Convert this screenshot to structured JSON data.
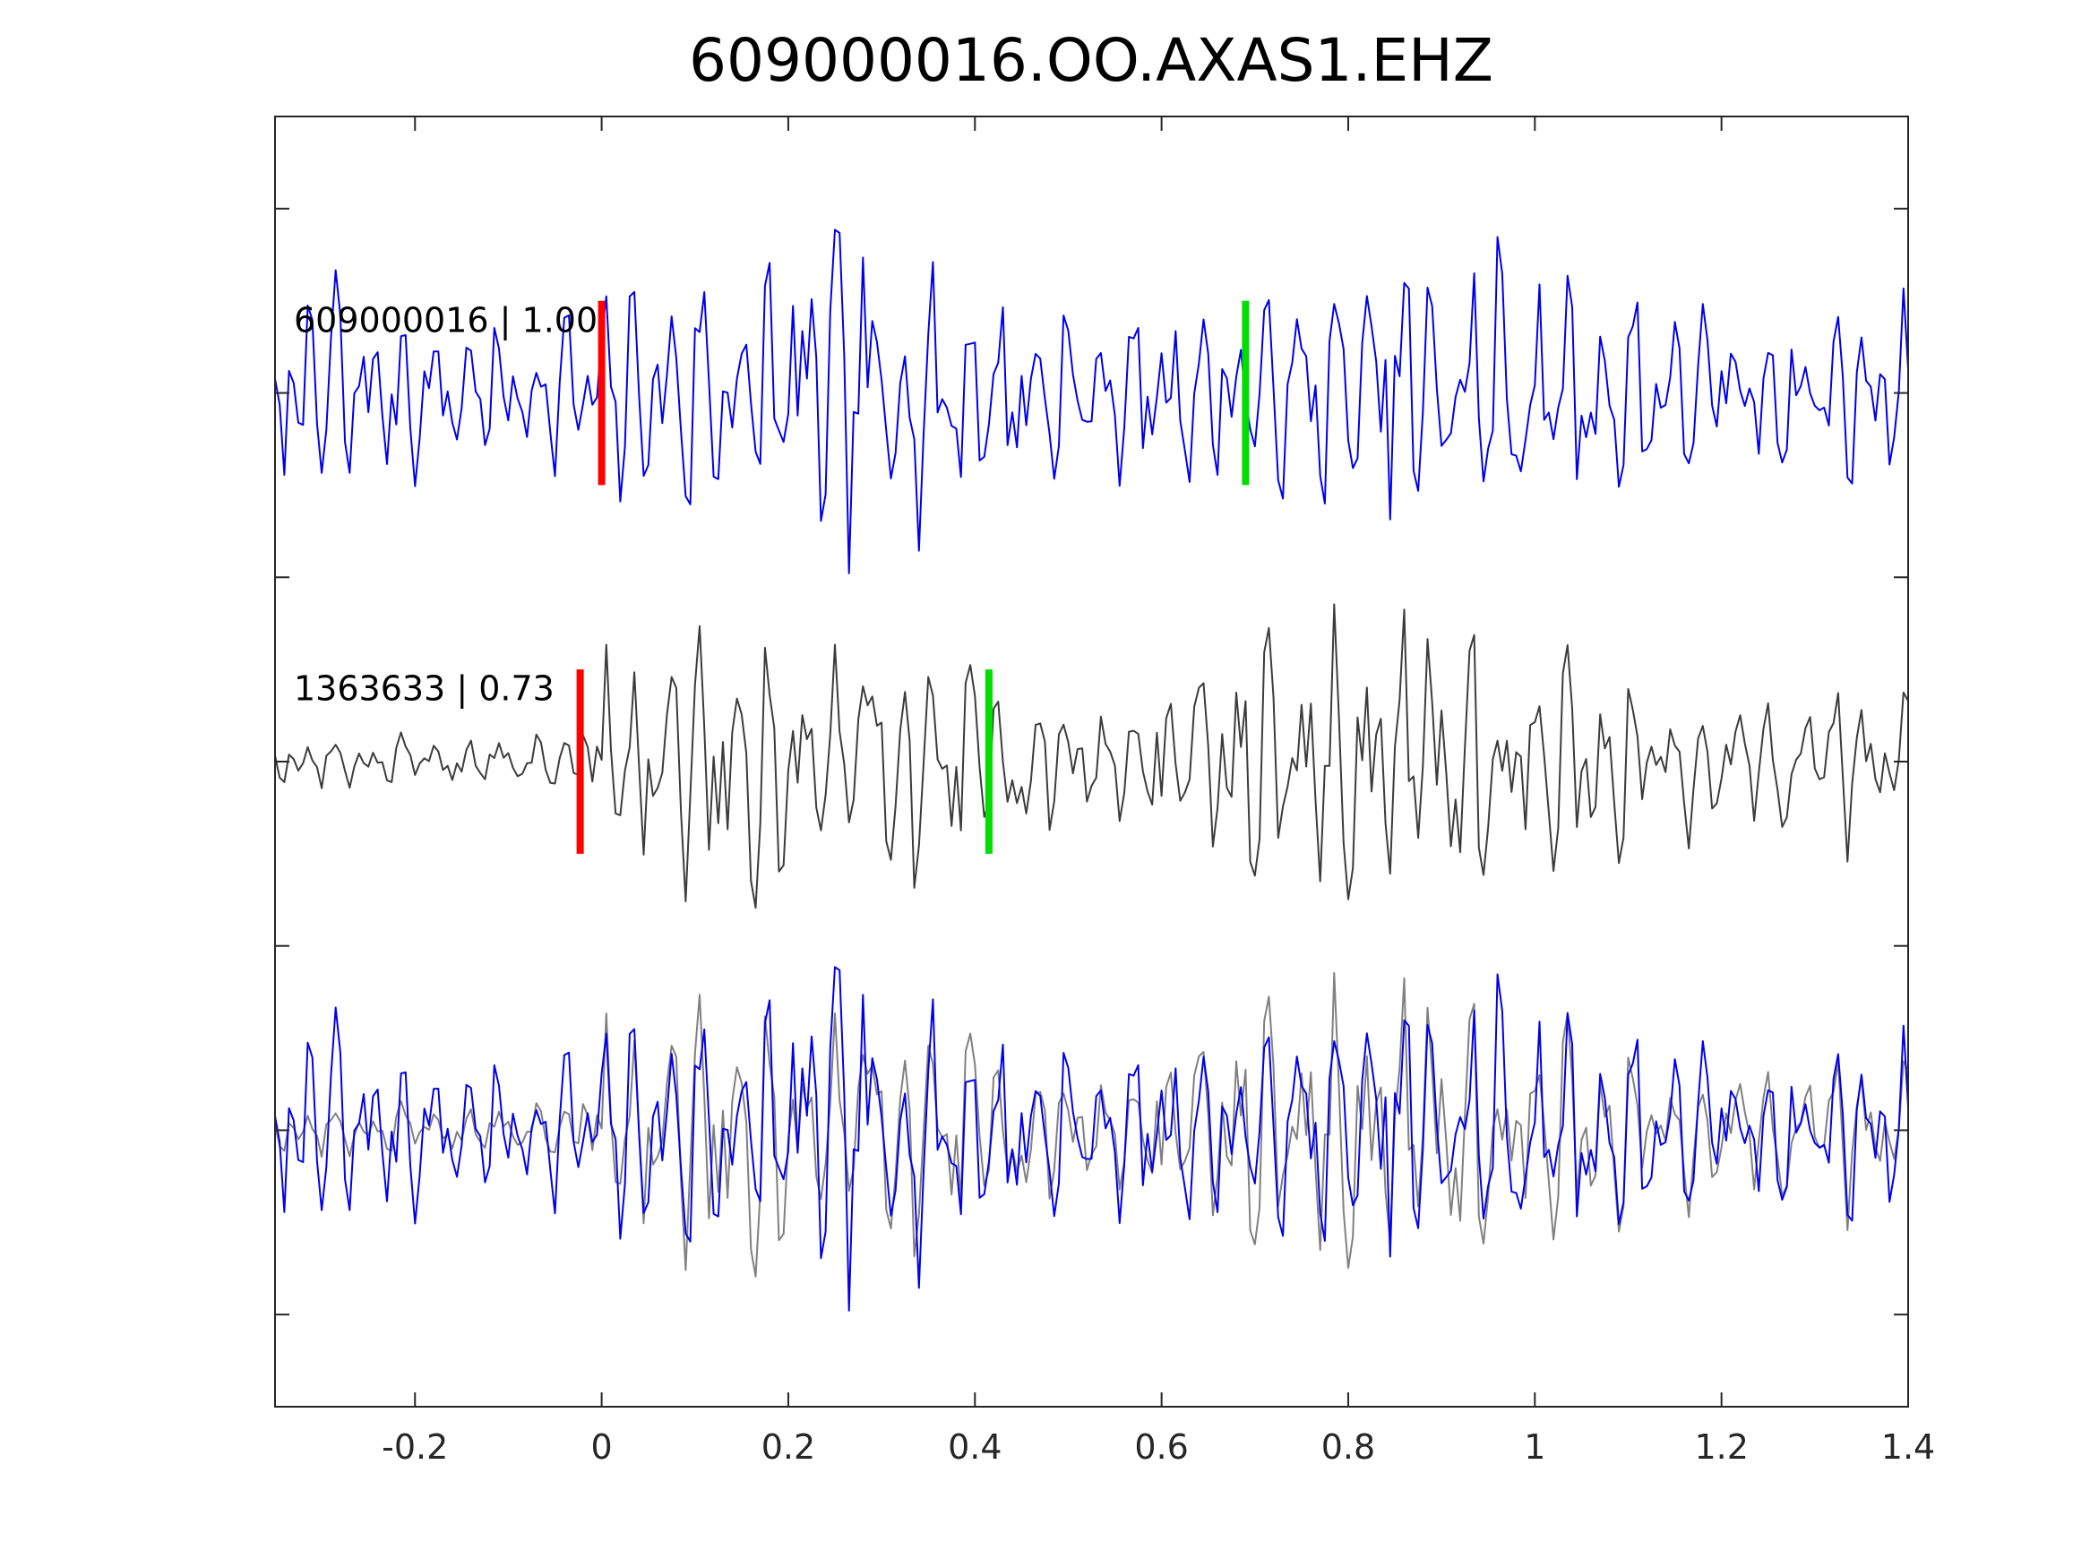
{
  "chart_data": {
    "type": "line",
    "title": "609000016.OO.AXAS1.EHZ",
    "xlabel": "",
    "ylabel": "",
    "xlim": [
      -0.35,
      1.4
    ],
    "x_ticks": [
      -0.2,
      0,
      0.2,
      0.4,
      0.6,
      0.8,
      1,
      1.2,
      1.4
    ],
    "x_tick_labels": [
      "-0.2",
      "0",
      "0.2",
      "0.4",
      "0.6",
      "0.8",
      "1",
      "1.2",
      "1.4"
    ],
    "ylim": [
      0.25,
      3.75
    ],
    "y_ticks": [
      0.5,
      1,
      1.5,
      2,
      2.5,
      3,
      3.5
    ],
    "y_tick_labels": [
      "",
      "",
      "",
      "",
      "",
      "",
      ""
    ],
    "grid": false,
    "colors": {
      "template": "#0000ee",
      "detection": "#3c3c3c",
      "overlay_detection": "#808080",
      "p_pick": "#ff0000",
      "s_pick": "#00dd00",
      "axes": "#262626"
    },
    "traces": [
      {
        "label": "609000016 | 1.00",
        "baseline": 3,
        "color": "#0000ee",
        "p_pick_time": 0.0,
        "s_pick_time": 0.69,
        "pick_half_height": 0.25,
        "amplitude": 0.45,
        "pattern": "template"
      },
      {
        "label": "1363633 | 0.73",
        "baseline": 2,
        "color": "#3c3c3c",
        "p_pick_time": -0.023,
        "s_pick_time": 0.415,
        "pick_half_height": 0.25,
        "amplitude": 0.42,
        "pattern": "detection"
      },
      {
        "label": "",
        "baseline": 1,
        "pattern": "overlay",
        "overlay": [
          "detection",
          "template"
        ]
      }
    ]
  }
}
